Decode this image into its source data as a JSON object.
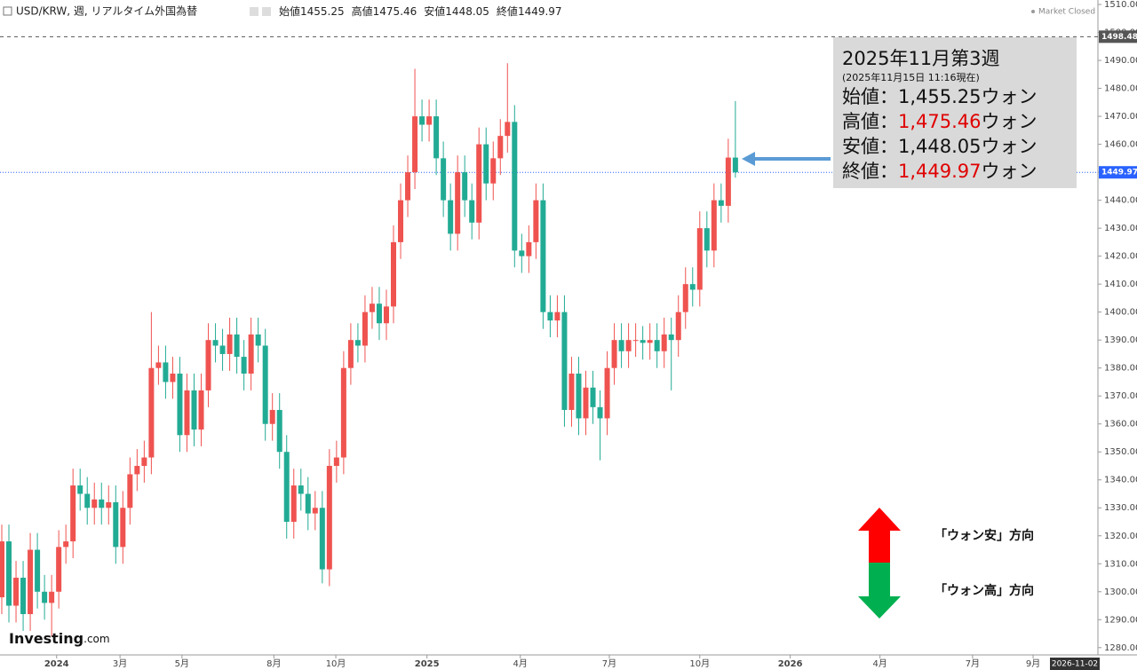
{
  "chart_data": {
    "type": "candlestick",
    "header": {
      "symbol": "USD/KRW, 週, リアルタイム外国為替",
      "ohlc_labels": [
        "始値",
        "高値",
        "安値",
        "終値"
      ],
      "status": "Market Closed"
    },
    "logo": {
      "main": "Investing",
      "suffix": ".com"
    },
    "up_color": "#ef5350",
    "down_color": "#22ab94",
    "open": [
      1298,
      1318,
      1295,
      1305,
      1292,
      1315,
      1300,
      1296,
      1300,
      1316,
      1318,
      1338,
      1335,
      1330,
      1333,
      1330,
      1332,
      1316,
      1330,
      1342,
      1345,
      1348,
      1380,
      1382,
      1375,
      1378,
      1356,
      1372,
      1358,
      1372,
      1390,
      1388,
      1385,
      1392,
      1384,
      1378,
      1392,
      1388,
      1360,
      1365,
      1350,
      1325,
      1338,
      1335,
      1328,
      1330,
      1308,
      1345,
      1348,
      1380,
      1390,
      1388,
      1400,
      1403,
      1396,
      1402,
      1425,
      1440,
      1450,
      1470,
      1467,
      1470,
      1455,
      1440,
      1428,
      1450,
      1440,
      1432,
      1460,
      1446,
      1455,
      1463,
      1468,
      1422,
      1420,
      1425,
      1440,
      1400,
      1397,
      1400,
      1365,
      1378,
      1362,
      1373,
      1366,
      1362,
      1380,
      1390,
      1386,
      1390,
      1390,
      1389,
      1390,
      1386,
      1392,
      1390,
      1400,
      1410,
      1408,
      1430,
      1422,
      1440,
      1438,
      1455.25
    ],
    "high": [
      1324,
      1324,
      1311,
      1311,
      1321,
      1321,
      1306,
      1306,
      1322,
      1324,
      1344,
      1344,
      1341,
      1339,
      1339,
      1338,
      1338,
      1336,
      1348,
      1351,
      1354,
      1400,
      1388,
      1388,
      1384,
      1384,
      1378,
      1378,
      1378,
      1396,
      1396,
      1394,
      1398,
      1398,
      1390,
      1398,
      1398,
      1394,
      1371,
      1371,
      1356,
      1344,
      1344,
      1341,
      1336,
      1336,
      1351,
      1354,
      1386,
      1396,
      1396,
      1406,
      1409,
      1409,
      1408,
      1431,
      1446,
      1456,
      1487,
      1476,
      1476,
      1476,
      1461,
      1446,
      1456,
      1456,
      1446,
      1466,
      1466,
      1461,
      1469,
      1489,
      1474,
      1428,
      1431,
      1446,
      1446,
      1406,
      1406,
      1406,
      1384,
      1384,
      1379,
      1379,
      1372,
      1386,
      1396,
      1396,
      1396,
      1396,
      1395,
      1396,
      1396,
      1398,
      1398,
      1406,
      1416,
      1416,
      1436,
      1436,
      1446,
      1446,
      1462,
      1475.46
    ],
    "low": [
      1292,
      1289,
      1289,
      1286,
      1286,
      1294,
      1290,
      1284,
      1294,
      1310,
      1312,
      1329,
      1324,
      1324,
      1324,
      1324,
      1310,
      1310,
      1324,
      1336,
      1339,
      1342,
      1374,
      1369,
      1369,
      1350,
      1350,
      1352,
      1352,
      1366,
      1382,
      1379,
      1379,
      1378,
      1372,
      1372,
      1382,
      1354,
      1354,
      1344,
      1319,
      1319,
      1329,
      1322,
      1322,
      1303,
      1302,
      1339,
      1342,
      1374,
      1382,
      1382,
      1394,
      1390,
      1390,
      1396,
      1419,
      1434,
      1444,
      1461,
      1461,
      1449,
      1434,
      1422,
      1422,
      1434,
      1426,
      1426,
      1440,
      1440,
      1449,
      1457,
      1416,
      1414,
      1414,
      1419,
      1394,
      1391,
      1391,
      1359,
      1359,
      1356,
      1356,
      1360,
      1347,
      1356,
      1374,
      1380,
      1380,
      1384,
      1383,
      1383,
      1380,
      1380,
      1372,
      1384,
      1394,
      1402,
      1402,
      1416,
      1416,
      1432,
      1432,
      1448.05
    ],
    "close": [
      1318,
      1295,
      1305,
      1292,
      1315,
      1300,
      1296,
      1300,
      1316,
      1318,
      1338,
      1335,
      1330,
      1333,
      1330,
      1332,
      1316,
      1330,
      1342,
      1345,
      1348,
      1380,
      1382,
      1375,
      1378,
      1356,
      1372,
      1358,
      1372,
      1390,
      1388,
      1385,
      1392,
      1384,
      1378,
      1392,
      1388,
      1360,
      1365,
      1350,
      1325,
      1338,
      1335,
      1328,
      1330,
      1308,
      1345,
      1348,
      1380,
      1390,
      1388,
      1400,
      1403,
      1396,
      1402,
      1425,
      1440,
      1450,
      1470,
      1467,
      1470,
      1455,
      1440,
      1428,
      1450,
      1440,
      1432,
      1460,
      1446,
      1455,
      1463,
      1468,
      1422,
      1420,
      1425,
      1440,
      1400,
      1397,
      1400,
      1365,
      1378,
      1362,
      1373,
      1366,
      1362,
      1380,
      1390,
      1386,
      1390,
      1390,
      1389,
      1390,
      1386,
      1392,
      1390,
      1400,
      1410,
      1408,
      1430,
      1422,
      1440,
      1438,
      1455.25,
      1449.97
    ],
    "xlim": [
      -0.25,
      153.9
    ],
    "xticks": [
      {
        "value": 7.7,
        "label": "2024"
      },
      {
        "value": 16.6,
        "label": "3月"
      },
      {
        "value": 25.3,
        "label": "5月"
      },
      {
        "value": 38.2,
        "label": "8月"
      },
      {
        "value": 46.9,
        "label": "10月"
      },
      {
        "value": 59.7,
        "label": "2025"
      },
      {
        "value": 72.8,
        "label": "4月"
      },
      {
        "value": 85.3,
        "label": "7月"
      },
      {
        "value": 98.0,
        "label": "10月"
      },
      {
        "value": 110.7,
        "label": "2026"
      },
      {
        "value": 123.3,
        "label": "4月"
      },
      {
        "value": 136.3,
        "label": "7月"
      },
      {
        "value": 144.8,
        "label": "9月"
      }
    ],
    "x_end_label": "2026-11-02",
    "ylim": [
      1277.4,
      1511.6
    ],
    "yticks": [
      {
        "value": 1280,
        "label": "1280.00"
      },
      {
        "value": 1290,
        "label": "1290.00"
      },
      {
        "value": 1300,
        "label": "1300.00"
      },
      {
        "value": 1310,
        "label": "1310.00"
      },
      {
        "value": 1320,
        "label": "1320.00"
      },
      {
        "value": 1330,
        "label": "1330.00"
      },
      {
        "value": 1340,
        "label": "1340.00"
      },
      {
        "value": 1350,
        "label": "1350.00"
      },
      {
        "value": 1360,
        "label": "1360.00"
      },
      {
        "value": 1370,
        "label": "1370.00"
      },
      {
        "value": 1380,
        "label": "1380.00"
      },
      {
        "value": 1390,
        "label": "1390.00"
      },
      {
        "value": 1400,
        "label": "1400.00"
      },
      {
        "value": 1410,
        "label": "1410.00"
      },
      {
        "value": 1420,
        "label": "1420.00"
      },
      {
        "value": 1430,
        "label": "1430.00"
      },
      {
        "value": 1440,
        "label": "1440.00"
      },
      {
        "value": 1450,
        "label": "1450.00"
      },
      {
        "value": 1460,
        "label": "1460.00"
      },
      {
        "value": 1470,
        "label": "1470.00"
      },
      {
        "value": 1480,
        "label": "1480.00"
      },
      {
        "value": 1490,
        "label": "1490.00"
      },
      {
        "value": 1500,
        "label": "1500.00"
      },
      {
        "value": 1510,
        "label": "1510.00"
      }
    ],
    "hlines": [
      {
        "value": 1498.48,
        "color": "#555555",
        "dash": "4,4"
      },
      {
        "value": 1449.97,
        "color": "#2962ff",
        "dash": "1,2"
      }
    ],
    "annotation": {
      "title": "2025年11月第3週",
      "subtitle": "(2025年11月15日 11:16現在)",
      "lines": [
        {
          "label": "始値：",
          "value": "1,455.25",
          "unit": "ウォン",
          "color": "#111111"
        },
        {
          "label": "高値：",
          "value": "1,475.46",
          "unit": "ウォン",
          "color": "#e00000"
        },
        {
          "label": "安値：",
          "value": "1,448.05",
          "unit": "ウォン",
          "color": "#111111"
        },
        {
          "label": "終値：",
          "value": "1,449.97",
          "unit": "ウォン",
          "color": "#e00000"
        }
      ]
    },
    "direction_labels": [
      "「ウォン安」方向",
      "「ウォン高」方向"
    ]
  }
}
